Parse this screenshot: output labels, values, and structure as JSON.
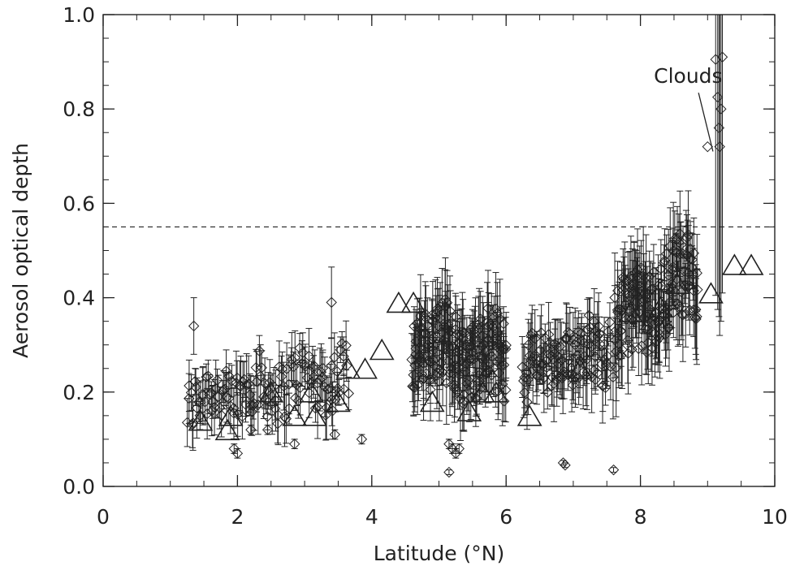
{
  "chart_data": {
    "type": "scatter",
    "xlabel": "Latitude (°N)",
    "ylabel": "Aerosol optical depth",
    "xlim": [
      0,
      10
    ],
    "ylim": [
      0.0,
      1.0
    ],
    "xticks": [
      "0",
      "2",
      "4",
      "6",
      "8",
      "10"
    ],
    "yticks": [
      "0.0",
      "0.2",
      "0.4",
      "0.6",
      "0.8",
      "1.0"
    ],
    "x_minor_step": 0.5,
    "y_minor_step": 0.05,
    "reference_line": {
      "y": 0.55,
      "style": "dashed"
    },
    "annotation": {
      "text": "Clouds",
      "text_at": [
        8.2,
        0.855
      ],
      "points_to": [
        9.08,
        0.71
      ]
    },
    "series": [
      {
        "marker": "diamond",
        "segments": [
          {
            "x_start": 1.25,
            "x_end": 3.65,
            "y_start": 0.18,
            "y_end": 0.24,
            "n": 130,
            "spread": 0.065,
            "err": 0.045
          },
          {
            "x_start": 4.6,
            "x_end": 6.0,
            "y_start": 0.3,
            "y_end": 0.27,
            "n": 190,
            "spread": 0.09,
            "err": 0.06
          },
          {
            "x_start": 6.25,
            "x_end": 7.55,
            "y_start": 0.24,
            "y_end": 0.3,
            "n": 110,
            "spread": 0.07,
            "err": 0.055
          },
          {
            "x_start": 7.6,
            "x_end": 8.85,
            "y_start": 0.33,
            "y_end": 0.46,
            "n": 150,
            "spread": 0.09,
            "err": 0.07
          }
        ],
        "points": [
          [
            1.35,
            0.34,
            0.06
          ],
          [
            3.4,
            0.39,
            0.075
          ],
          [
            2.2,
            0.12,
            0.01
          ],
          [
            2.45,
            0.12,
            0.01
          ],
          [
            2.85,
            0.09,
            0.01
          ],
          [
            3.45,
            0.11,
            0.01
          ],
          [
            3.85,
            0.1,
            0.01
          ],
          [
            1.95,
            0.08,
            0.01
          ],
          [
            2.0,
            0.07,
            0.01
          ],
          [
            5.15,
            0.09,
            0.01
          ],
          [
            5.2,
            0.08,
            0.01
          ],
          [
            5.25,
            0.07,
            0.01
          ],
          [
            5.3,
            0.08,
            0.01
          ],
          [
            5.15,
            0.03,
            0.005
          ],
          [
            6.85,
            0.05,
            0.005
          ],
          [
            6.88,
            0.045,
            0.005
          ],
          [
            7.6,
            0.035,
            0.005
          ],
          [
            9.0,
            0.72,
            0.0
          ],
          [
            9.12,
            0.905,
            0.5
          ],
          [
            9.15,
            0.825,
            0.45
          ],
          [
            9.17,
            0.76,
            0.4
          ],
          [
            9.2,
            0.8,
            0.45
          ],
          [
            9.22,
            0.91,
            0.5
          ],
          [
            9.18,
            0.72,
            0.4
          ]
        ]
      },
      {
        "marker": "triangle",
        "points": [
          [
            1.45,
            0.14
          ],
          [
            1.85,
            0.12
          ],
          [
            1.9,
            0.15
          ],
          [
            2.5,
            0.2
          ],
          [
            2.85,
            0.15
          ],
          [
            3.1,
            0.2
          ],
          [
            3.15,
            0.15
          ],
          [
            3.5,
            0.18
          ],
          [
            3.65,
            0.25
          ],
          [
            3.9,
            0.25
          ],
          [
            4.15,
            0.29
          ],
          [
            4.4,
            0.39
          ],
          [
            4.62,
            0.39
          ],
          [
            4.9,
            0.18
          ],
          [
            5.45,
            0.16
          ],
          [
            5.65,
            0.2
          ],
          [
            5.85,
            0.2
          ],
          [
            6.35,
            0.15
          ],
          [
            7.1,
            0.25
          ],
          [
            7.85,
            0.37
          ],
          [
            8.3,
            0.38
          ],
          [
            8.55,
            0.43
          ],
          [
            9.05,
            0.41
          ],
          [
            9.4,
            0.47
          ],
          [
            9.65,
            0.47
          ]
        ]
      }
    ]
  }
}
